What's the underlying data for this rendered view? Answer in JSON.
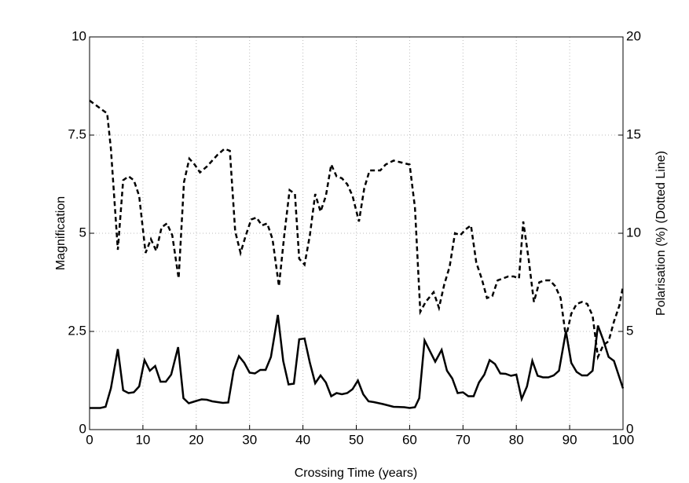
{
  "chart_data": {
    "type": "line",
    "xlabel": "Crossing Time (years)",
    "ylabel": "Magnification",
    "y2label": "Polarisation (%) (Dotted Line)",
    "xlim": [
      0,
      100
    ],
    "xticks": [
      0,
      10,
      20,
      30,
      40,
      50,
      60,
      70,
      80,
      90,
      100
    ],
    "ylim": [
      0,
      10
    ],
    "yticks": [
      0,
      2.5,
      5,
      7.5,
      10
    ],
    "y2lim": [
      0,
      20
    ],
    "y2ticks": [
      0,
      5,
      10,
      15,
      20
    ],
    "grid": true,
    "series": [
      {
        "color": "#000000",
        "linestyle": "solid",
        "x": [
          0,
          2,
          3,
          4,
          5.3,
          6.3,
          7.3,
          8.3,
          9.3,
          10.3,
          11.3,
          12.3,
          13.3,
          14.3,
          15.3,
          16.6,
          17.6,
          18.6,
          20,
          21,
          22,
          23,
          24,
          25,
          26,
          27,
          28,
          29,
          30,
          31,
          32,
          33,
          34,
          35.3,
          36.3,
          37.3,
          38.3,
          39.3,
          40.3,
          41.3,
          42.3,
          43.3,
          44.3,
          45.3,
          46.3,
          47.3,
          48.3,
          49.3,
          50.3,
          51.3,
          52.3,
          53.3,
          55,
          57,
          59,
          60,
          61,
          61.8,
          62.8,
          64.8,
          66,
          67,
          68,
          69,
          70,
          71,
          72,
          73,
          74,
          75,
          76,
          77,
          78,
          79,
          80,
          81,
          82,
          83,
          84,
          85,
          86,
          87,
          88,
          89.3,
          90.3,
          91.3,
          92.3,
          93.3,
          94.3,
          95.3,
          96.3,
          97.3,
          98.3,
          100
        ],
        "values": [
          0.55,
          0.55,
          0.58,
          1.05,
          2.05,
          1.0,
          0.93,
          0.95,
          1.1,
          1.77,
          1.5,
          1.62,
          1.22,
          1.22,
          1.4,
          2.1,
          0.8,
          0.67,
          0.73,
          0.77,
          0.76,
          0.72,
          0.7,
          0.68,
          0.69,
          1.5,
          1.87,
          1.7,
          1.45,
          1.43,
          1.52,
          1.52,
          1.85,
          2.92,
          1.75,
          1.15,
          1.17,
          2.3,
          2.32,
          1.7,
          1.18,
          1.38,
          1.2,
          0.85,
          0.93,
          0.9,
          0.93,
          1.03,
          1.25,
          0.9,
          0.72,
          0.7,
          0.65,
          0.58,
          0.57,
          0.55,
          0.57,
          0.8,
          2.27,
          1.73,
          2.03,
          1.5,
          1.3,
          0.93,
          0.95,
          0.85,
          0.85,
          1.2,
          1.4,
          1.77,
          1.67,
          1.43,
          1.42,
          1.37,
          1.4,
          0.78,
          1.1,
          1.75,
          1.37,
          1.33,
          1.33,
          1.38,
          1.5,
          2.5,
          1.7,
          1.47,
          1.38,
          1.38,
          1.5,
          2.65,
          2.28,
          1.85,
          1.75,
          1.05
        ]
      },
      {
        "color": "#000000",
        "linestyle": "dashed",
        "axis": "y2",
        "x": [
          0,
          3.3,
          4,
          5.3,
          6.3,
          7.3,
          8.3,
          9.3,
          10.5,
          11.5,
          12.5,
          13.5,
          14.5,
          15.5,
          16.7,
          17.7,
          18.7,
          19.7,
          20.7,
          22,
          23,
          24,
          25.3,
          26.3,
          27.3,
          28.3,
          29.3,
          30.3,
          31.3,
          32.3,
          33.3,
          34.3,
          35.5,
          36.5,
          37.5,
          38.5,
          39.3,
          40.3,
          41.3,
          42.3,
          43.3,
          44.3,
          45.3,
          46.3,
          47.3,
          48.3,
          49.3,
          50.5,
          51.5,
          52.5,
          53.5,
          54.5,
          55.5,
          57,
          58.5,
          60,
          61,
          62,
          63,
          64.5,
          65.5,
          66.5,
          67.5,
          68.5,
          69.5,
          70.5,
          71.5,
          72.5,
          73.5,
          74.5,
          75.5,
          76.5,
          77.5,
          78.5,
          79.5,
          80.5,
          81.3,
          82.3,
          83.3,
          84.3,
          85.3,
          86.3,
          87.3,
          88.3,
          89.3,
          90.3,
          91.3,
          92.3,
          93.3,
          94.3,
          95.3,
          96.3,
          97.3,
          98.3,
          99.3,
          100
        ],
        "values": [
          16.76,
          16.1,
          14.3,
          9.16,
          12.7,
          12.9,
          12.7,
          11.9,
          9.0,
          9.7,
          9.1,
          10.3,
          10.5,
          9.9,
          7.7,
          12.6,
          13.8,
          13.5,
          13.1,
          13.4,
          13.7,
          14.0,
          14.3,
          14.2,
          10.1,
          9.0,
          9.9,
          10.7,
          10.8,
          10.4,
          10.5,
          9.7,
          7.3,
          9.9,
          12.2,
          12.0,
          8.7,
          8.4,
          9.9,
          12.0,
          11.1,
          11.9,
          13.5,
          12.9,
          12.8,
          12.5,
          11.9,
          10.6,
          12.3,
          13.2,
          13.2,
          13.2,
          13.5,
          13.7,
          13.6,
          13.5,
          11.3,
          6.0,
          6.5,
          7.0,
          6.2,
          7.4,
          8.3,
          10.0,
          9.9,
          10.2,
          10.4,
          8.5,
          7.7,
          6.7,
          6.8,
          7.6,
          7.7,
          7.8,
          7.8,
          7.7,
          10.6,
          8.7,
          6.5,
          7.5,
          7.6,
          7.6,
          7.3,
          6.7,
          4.7,
          5.9,
          6.4,
          6.5,
          6.4,
          5.8,
          3.7,
          4.3,
          4.5,
          5.5,
          6.3,
          7.3
        ]
      }
    ]
  }
}
